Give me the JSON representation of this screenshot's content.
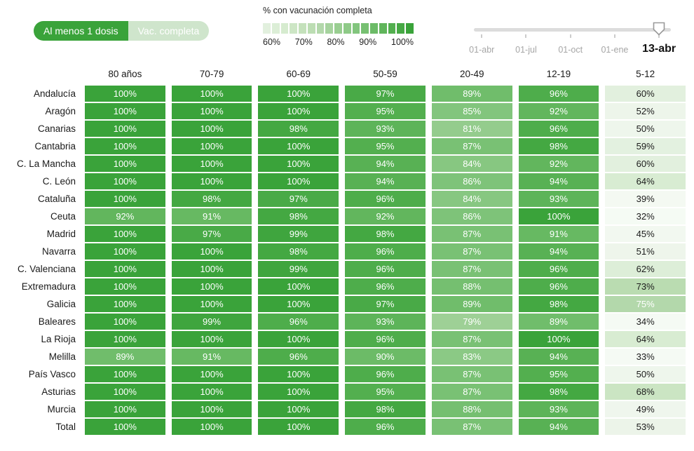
{
  "toggle": {
    "options": [
      {
        "label": "Al menos 1 dosis",
        "active": true
      },
      {
        "label": "Vac. completa",
        "active": false
      }
    ]
  },
  "legend": {
    "title": "% con vacunación completa",
    "tick_labels": [
      "60%",
      "70%",
      "80%",
      "90%",
      "100%"
    ],
    "min": 60,
    "max": 100,
    "steps": 17
  },
  "slider": {
    "tick_labels": [
      "01-abr",
      "01-jul",
      "01-oct",
      "01-ene"
    ],
    "current": "13-abr"
  },
  "chart_data": {
    "type": "heatmap",
    "title": "% con vacunación completa",
    "unit": "%",
    "columns": [
      "80 años",
      "70-79",
      "60-69",
      "50-59",
      "20-49",
      "12-19",
      "5-12"
    ],
    "rows": [
      {
        "label": "Andalucía",
        "values": [
          100,
          100,
          100,
          97,
          89,
          96,
          60
        ]
      },
      {
        "label": "Aragón",
        "values": [
          100,
          100,
          100,
          95,
          85,
          92,
          52
        ]
      },
      {
        "label": "Canarias",
        "values": [
          100,
          100,
          98,
          93,
          81,
          96,
          50
        ]
      },
      {
        "label": "Cantabria",
        "values": [
          100,
          100,
          100,
          95,
          87,
          98,
          59
        ]
      },
      {
        "label": "C. La Mancha",
        "values": [
          100,
          100,
          100,
          94,
          84,
          92,
          60
        ]
      },
      {
        "label": "C. León",
        "values": [
          100,
          100,
          100,
          94,
          86,
          94,
          64
        ]
      },
      {
        "label": "Cataluña",
        "values": [
          100,
          98,
          97,
          96,
          84,
          93,
          39
        ]
      },
      {
        "label": "Ceuta",
        "values": [
          92,
          91,
          98,
          92,
          86,
          100,
          32
        ]
      },
      {
        "label": "Madrid",
        "values": [
          100,
          97,
          99,
          98,
          87,
          91,
          45
        ]
      },
      {
        "label": "Navarra",
        "values": [
          100,
          100,
          98,
          96,
          87,
          94,
          51
        ]
      },
      {
        "label": "C. Valenciana",
        "values": [
          100,
          100,
          99,
          96,
          87,
          96,
          62
        ]
      },
      {
        "label": "Extremadura",
        "values": [
          100,
          100,
          100,
          96,
          88,
          96,
          73
        ]
      },
      {
        "label": "Galicia",
        "values": [
          100,
          100,
          100,
          97,
          89,
          98,
          75
        ]
      },
      {
        "label": "Baleares",
        "values": [
          100,
          99,
          96,
          93,
          79,
          89,
          34
        ]
      },
      {
        "label": "La Rioja",
        "values": [
          100,
          100,
          100,
          96,
          87,
          100,
          64
        ]
      },
      {
        "label": "Melilla",
        "values": [
          89,
          91,
          96,
          90,
          83,
          94,
          33
        ]
      },
      {
        "label": "País Vasco",
        "values": [
          100,
          100,
          100,
          96,
          87,
          95,
          50
        ]
      },
      {
        "label": "Asturias",
        "values": [
          100,
          100,
          100,
          95,
          87,
          98,
          68
        ]
      },
      {
        "label": "Murcia",
        "values": [
          100,
          100,
          100,
          98,
          88,
          93,
          49
        ]
      },
      {
        "label": "Total",
        "values": [
          100,
          100,
          100,
          96,
          87,
          94,
          53
        ]
      }
    ],
    "color_scale": {
      "anchors": [
        [
          30,
          "#f6fbf5"
        ],
        [
          45,
          "#f2f8f0"
        ],
        [
          52,
          "#edf5ea"
        ],
        [
          60,
          "#e2f0de"
        ],
        [
          65,
          "#d6ebcf"
        ],
        [
          70,
          "#c4e1bb"
        ],
        [
          75,
          "#b3d8ab"
        ],
        [
          80,
          "#99ce91"
        ],
        [
          85,
          "#82c57d"
        ],
        [
          90,
          "#6cbb67"
        ],
        [
          95,
          "#53af4f"
        ],
        [
          100,
          "#3aa33a"
        ]
      ],
      "white_text_min": 75
    },
    "legend_position": "top",
    "grid": false
  },
  "colors": {
    "accent": "#3aa33a",
    "toggle_inactive": "#cfe5cc",
    "slider_track": "#dcdcdc",
    "slider_label": "#a6a6a6",
    "text": "#1a1a1a"
  }
}
